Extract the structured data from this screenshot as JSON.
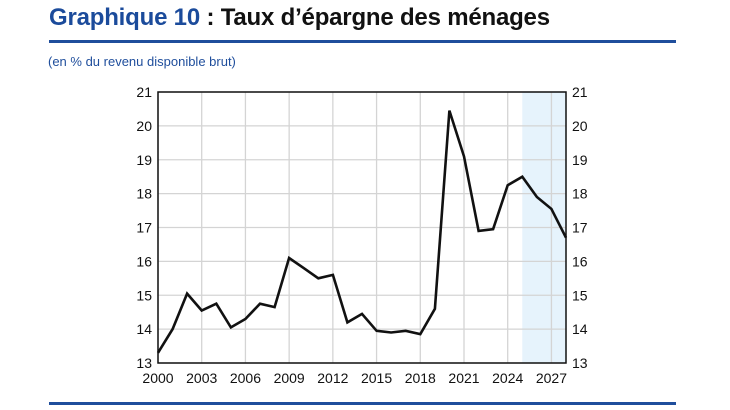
{
  "header": {
    "title_number": "Graphique 10",
    "title_text": " : Taux d’épargne des ménages",
    "subtitle": "(en % du revenu disponible brut)"
  },
  "colors": {
    "title_blue": "#1b4b9b",
    "rule_blue": "#1f4e9c",
    "line": "#111111",
    "grid": "#d4d4d4",
    "forecast_shade": "#e6f3fc"
  },
  "chart_data": {
    "type": "line",
    "title": "Taux d’épargne des ménages",
    "subtitle": "(en % du revenu disponible brut)",
    "xlabel": "",
    "ylabel": "",
    "x": [
      2000,
      2001,
      2002,
      2003,
      2004,
      2005,
      2006,
      2007,
      2008,
      2009,
      2010,
      2011,
      2012,
      2013,
      2014,
      2015,
      2016,
      2017,
      2018,
      2019,
      2020,
      2021,
      2022,
      2023,
      2024,
      2025,
      2026,
      2027,
      2028
    ],
    "series": [
      {
        "name": "Taux d’épargne des ménages",
        "values": [
          13.3,
          14.0,
          15.05,
          14.55,
          14.75,
          14.05,
          14.3,
          14.75,
          14.65,
          16.1,
          15.8,
          15.5,
          15.6,
          14.2,
          14.45,
          13.95,
          13.9,
          13.95,
          13.85,
          14.6,
          20.45,
          19.1,
          16.9,
          16.95,
          18.25,
          18.5,
          17.9,
          17.55,
          16.7
        ]
      }
    ],
    "xticks": [
      "2000",
      "2003",
      "2006",
      "2009",
      "2012",
      "2015",
      "2018",
      "2021",
      "2024",
      "2027"
    ],
    "xtick_values": [
      2000,
      2003,
      2006,
      2009,
      2012,
      2015,
      2018,
      2021,
      2024,
      2027
    ],
    "yticks_left": [
      "13",
      "14",
      "15",
      "16",
      "17",
      "18",
      "19",
      "20",
      "21"
    ],
    "yticks_right": [
      "13",
      "14",
      "15",
      "16",
      "17",
      "18",
      "19",
      "20",
      "21"
    ],
    "xlim": [
      2000,
      2028
    ],
    "ylim": [
      13,
      21
    ],
    "grid": true,
    "legend": null,
    "forecast_shaded_range": [
      2025,
      2028
    ]
  }
}
